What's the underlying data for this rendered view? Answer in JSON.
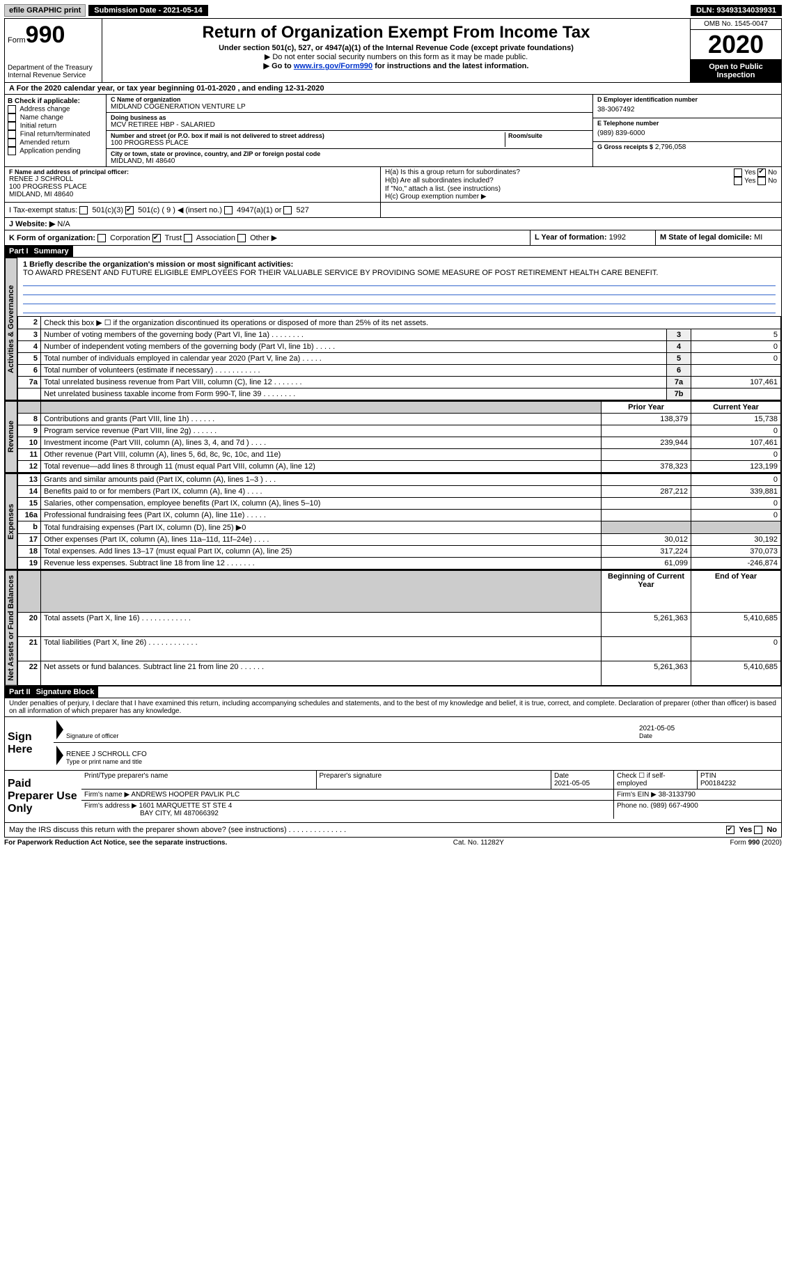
{
  "toolbar": {
    "efile": "efile GRAPHIC print",
    "sub_label": "Submission Date - 2021-05-14",
    "dln": "DLN: 93493134039931"
  },
  "header": {
    "form_word": "Form",
    "form_num": "990",
    "dept": "Department of the Treasury\nInternal Revenue Service",
    "title": "Return of Organization Exempt From Income Tax",
    "sub1": "Under section 501(c), 527, or 4947(a)(1) of the Internal Revenue Code (except private foundations)",
    "sub2": "▶ Do not enter social security numbers on this form as it may be made public.",
    "sub3_pre": "▶ Go to ",
    "sub3_link": "www.irs.gov/Form990",
    "sub3_post": " for instructions and the latest information.",
    "omb": "OMB No. 1545-0047",
    "year": "2020",
    "open": "Open to Public Inspection"
  },
  "line_a": "A For the 2020 calendar year, or tax year beginning 01-01-2020 , and ending 12-31-2020",
  "boxB": {
    "hdr": "B Check if applicable:",
    "opts": [
      "Address change",
      "Name change",
      "Initial return",
      "Final return/terminated",
      "Amended return",
      "Application pending"
    ]
  },
  "boxC": {
    "label": "C Name of organization",
    "name": "MIDLAND COGENERATION VENTURE LP",
    "dba_label": "Doing business as",
    "dba": "MCV RETIREE HBP - SALARIED",
    "addr_label": "Number and street (or P.O. box if mail is not delivered to street address)",
    "room_label": "Room/suite",
    "addr": "100 PROGRESS PLACE",
    "city_label": "City or town, state or province, country, and ZIP or foreign postal code",
    "city": "MIDLAND, MI  48640"
  },
  "boxD": {
    "label": "D Employer identification number",
    "val": "38-3067492"
  },
  "boxE": {
    "label": "E Telephone number",
    "val": "(989) 839-6000"
  },
  "boxG": {
    "label": "G Gross receipts $",
    "val": "2,796,058"
  },
  "boxF": {
    "label": "F Name and address of principal officer:",
    "name": "RENEE J SCHROLL",
    "addr1": "100 PROGRESS PLACE",
    "addr2": "MIDLAND, MI  48640"
  },
  "boxH": {
    "a": "H(a) Is this a group return for subordinates?",
    "b": "H(b) Are all subordinates included?",
    "note": "If \"No,\" attach a list. (see instructions)",
    "c": "H(c) Group exemption number ▶",
    "yes": "Yes",
    "no": "No"
  },
  "boxI": {
    "label": "I   Tax-exempt status:",
    "c3": "501(c)(3)",
    "c": "501(c) ( 9 ) ◀ (insert no.)",
    "a1": "4947(a)(1) or",
    "o527": "527"
  },
  "boxJ": {
    "label": "J   Website: ▶",
    "val": "N/A"
  },
  "boxK": {
    "label": "K Form of organization:",
    "opts": [
      "Corporation",
      "Trust",
      "Association",
      "Other ▶"
    ]
  },
  "boxL": {
    "label": "L Year of formation:",
    "val": "1992"
  },
  "boxM": {
    "label": "M State of legal domicile:",
    "val": "MI"
  },
  "part1": {
    "hdr": "Part I",
    "title": "Summary"
  },
  "mission": {
    "q": "1   Briefly describe the organization's mission or most significant activities:",
    "text": "TO AWARD PRESENT AND FUTURE ELIGIBLE EMPLOYEES FOR THEIR VALUABLE SERVICE BY PROVIDING SOME MEASURE OF POST RETIREMENT HEALTH CARE BENEFIT."
  },
  "gov_lines": [
    {
      "n": "2",
      "t": "Check this box ▶ ☐ if the organization discontinued its operations or disposed of more than 25% of its net assets."
    },
    {
      "n": "3",
      "t": "Number of voting members of the governing body (Part VI, line 1a)  .  .  .  .  .  .  .  .",
      "box": "3",
      "v": "5"
    },
    {
      "n": "4",
      "t": "Number of independent voting members of the governing body (Part VI, line 1b)  .  .  .  .  .",
      "box": "4",
      "v": "0"
    },
    {
      "n": "5",
      "t": "Total number of individuals employed in calendar year 2020 (Part V, line 2a)  .  .  .  .  .",
      "box": "5",
      "v": "0"
    },
    {
      "n": "6",
      "t": "Total number of volunteers (estimate if necessary)  .  .  .  .  .  .  .  .  .  .  .",
      "box": "6",
      "v": ""
    },
    {
      "n": "7a",
      "t": "Total unrelated business revenue from Part VIII, column (C), line 12  .  .  .  .  .  .  .",
      "box": "7a",
      "v": "107,461"
    },
    {
      "n": "",
      "t": "Net unrelated business taxable income from Form 990-T, line 39  .  .  .  .  .  .  .  .",
      "box": "7b",
      "v": ""
    }
  ],
  "col_hdr": {
    "prior": "Prior Year",
    "curr": "Current Year"
  },
  "rev_lines": [
    {
      "n": "8",
      "t": "Contributions and grants (Part VIII, line 1h)  .  .  .  .  .  .",
      "p": "138,379",
      "c": "15,738"
    },
    {
      "n": "9",
      "t": "Program service revenue (Part VIII, line 2g)  .  .  .  .  .  .",
      "p": "",
      "c": "0"
    },
    {
      "n": "10",
      "t": "Investment income (Part VIII, column (A), lines 3, 4, and 7d )  .  .  .  .",
      "p": "239,944",
      "c": "107,461"
    },
    {
      "n": "11",
      "t": "Other revenue (Part VIII, column (A), lines 5, 6d, 8c, 9c, 10c, and 11e)",
      "p": "",
      "c": "0"
    },
    {
      "n": "12",
      "t": "Total revenue—add lines 8 through 11 (must equal Part VIII, column (A), line 12)",
      "p": "378,323",
      "c": "123,199"
    }
  ],
  "exp_lines": [
    {
      "n": "13",
      "t": "Grants and similar amounts paid (Part IX, column (A), lines 1–3 )  .  .  .",
      "p": "",
      "c": "0"
    },
    {
      "n": "14",
      "t": "Benefits paid to or for members (Part IX, column (A), line 4)  .  .  .  .",
      "p": "287,212",
      "c": "339,881"
    },
    {
      "n": "15",
      "t": "Salaries, other compensation, employee benefits (Part IX, column (A), lines 5–10)",
      "p": "",
      "c": "0"
    },
    {
      "n": "16a",
      "t": "Professional fundraising fees (Part IX, column (A), line 11e)  .  .  .  .  .",
      "p": "",
      "c": "0"
    },
    {
      "n": "b",
      "t": "Total fundraising expenses (Part IX, column (D), line 25) ▶0",
      "shade": true
    },
    {
      "n": "17",
      "t": "Other expenses (Part IX, column (A), lines 11a–11d, 11f–24e)  .  .  .  .",
      "p": "30,012",
      "c": "30,192"
    },
    {
      "n": "18",
      "t": "Total expenses. Add lines 13–17 (must equal Part IX, column (A), line 25)",
      "p": "317,224",
      "c": "370,073"
    },
    {
      "n": "19",
      "t": "Revenue less expenses. Subtract line 18 from line 12  .  .  .  .  .  .  .",
      "p": "61,099",
      "c": "-246,874"
    }
  ],
  "na_hdr": {
    "beg": "Beginning of Current Year",
    "end": "End of Year"
  },
  "na_lines": [
    {
      "n": "20",
      "t": "Total assets (Part X, line 16)  .  .  .  .  .  .  .  .  .  .  .  .",
      "p": "5,261,363",
      "c": "5,410,685"
    },
    {
      "n": "21",
      "t": "Total liabilities (Part X, line 26) .  .  .  .  .  .  .  .  .  .  .  .",
      "p": "",
      "c": "0"
    },
    {
      "n": "22",
      "t": "Net assets or fund balances. Subtract line 21 from line 20  .  .  .  .  .  .",
      "p": "5,261,363",
      "c": "5,410,685"
    }
  ],
  "part2": {
    "hdr": "Part II",
    "title": "Signature Block"
  },
  "perjury": "Under penalties of perjury, I declare that I have examined this return, including accompanying schedules and statements, and to the best of my knowledge and belief, it is true, correct, and complete. Declaration of preparer (other than officer) is based on all information of which preparer has any knowledge.",
  "sign": {
    "here": "Sign Here",
    "sig_label": "Signature of officer",
    "date": "2021-05-05",
    "date_label": "Date",
    "name": "RENEE J SCHROLL CFO",
    "name_label": "Type or print name and title"
  },
  "paid": {
    "hdr": "Paid Preparer Use Only",
    "col1": "Print/Type preparer's name",
    "col2": "Preparer's signature",
    "col3": "Date",
    "date": "2021-05-05",
    "col4": "Check ☐ if self-employed",
    "col5": "PTIN",
    "ptin": "P00184232",
    "firm_label": "Firm's name   ▶",
    "firm": "ANDREWS HOOPER PAVLIK PLC",
    "ein_label": "Firm's EIN ▶",
    "ein": "38-3133790",
    "addr_label": "Firm's address ▶",
    "addr": "1601 MARQUETTE ST STE 4",
    "addr2": "BAY CITY, MI  487066392",
    "phone_label": "Phone no.",
    "phone": "(989) 667-4900"
  },
  "discuss": "May the IRS discuss this return with the preparer shown above? (see instructions)  .  .  .  .  .  .  .  .  .  .  .  .  .  .",
  "footer": {
    "left": "For Paperwork Reduction Act Notice, see the separate instructions.",
    "mid": "Cat. No. 11282Y",
    "right": "Form 990 (2020)"
  },
  "vtabs": {
    "gov": "Activities & Governance",
    "rev": "Revenue",
    "exp": "Expenses",
    "na": "Net Assets or Fund Balances"
  }
}
